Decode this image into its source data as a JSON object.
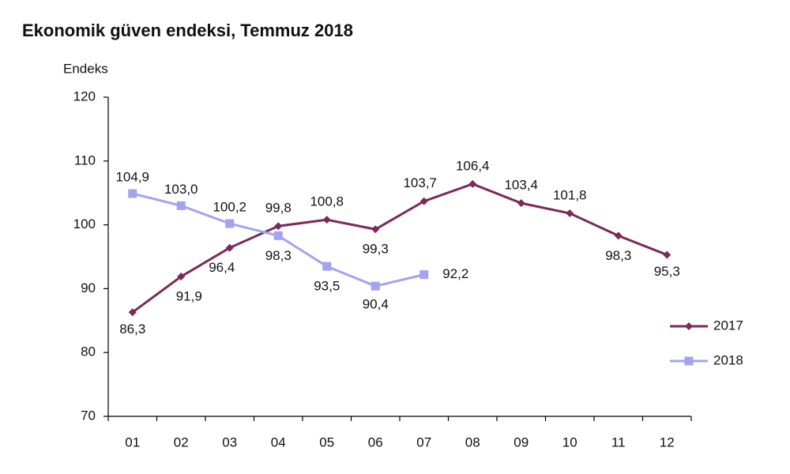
{
  "chart_data": {
    "type": "line",
    "title": "Ekonomik güven endeksi, Temmuz 2018",
    "y_label": "Endeks",
    "categories": [
      "01",
      "02",
      "03",
      "04",
      "05",
      "06",
      "07",
      "08",
      "09",
      "10",
      "11",
      "12"
    ],
    "series": [
      {
        "name": "2017",
        "color": "#7b2a5a",
        "marker": "diamond",
        "values": [
          86.3,
          91.9,
          96.4,
          99.8,
          100.8,
          99.3,
          103.7,
          106.4,
          103.4,
          101.8,
          98.3,
          95.3
        ],
        "value_labels": [
          "86,3",
          "91,9",
          "96,4",
          "99,8",
          "100,8",
          "99,3",
          "103,7",
          "106,4",
          "103,4",
          "101,8",
          "98,3",
          "95,3"
        ]
      },
      {
        "name": "2018",
        "color": "#a3a3f2",
        "marker": "square",
        "values": [
          104.9,
          103.0,
          100.2,
          98.3,
          93.5,
          90.4,
          92.2,
          null,
          null,
          null,
          null,
          null
        ],
        "value_labels": [
          "104,9",
          "103,0",
          "100,2",
          "98,3",
          "93,5",
          "90,4",
          "92,2",
          null,
          null,
          null,
          null,
          null
        ]
      }
    ],
    "ylim": [
      70,
      120
    ],
    "yticks": [
      70,
      80,
      90,
      100,
      110,
      120
    ],
    "grid": false,
    "legend": "right"
  }
}
